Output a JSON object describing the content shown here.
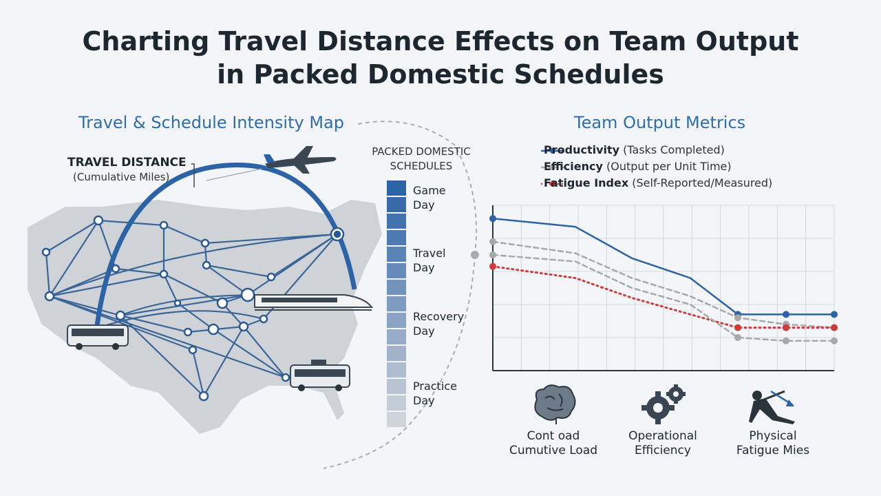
{
  "title": {
    "line1": "Charting Travel Distance Effects on Team Output",
    "line2": "in Packed Domestic Schedules"
  },
  "map": {
    "title": "Travel & Schedule Intensity Map",
    "travel_label": "TRAVEL DISTANCE",
    "travel_sub": "(Cumulative Miles)"
  },
  "schedule": {
    "title_line1": "PACKED DOMESTIC",
    "title_line2": "SCHEDULES",
    "items": [
      {
        "line1": "Game",
        "line2": "Day"
      },
      {
        "line1": "Travel",
        "line2": "Day"
      },
      {
        "line1": "Recovery",
        "line2": "Day"
      },
      {
        "line1": "Practice",
        "line2": "Day"
      }
    ]
  },
  "metrics": {
    "title": "Team Output Metrics",
    "legend": [
      {
        "name": "Productivity",
        "detail": "(Tasks Completed)",
        "color": "#2c62a6",
        "style": "solid"
      },
      {
        "name": "Efficiency",
        "detail": "(Output per Unit Time)",
        "color": "#a8a8a8",
        "style": "dashed"
      },
      {
        "name": "Fatigue Index",
        "detail": "(Self-Reported/Measured)",
        "color": "#d03a3a",
        "style": "dotted"
      }
    ],
    "icons": [
      {
        "name": "brain-icon",
        "line1": "Cont oad",
        "line2": "Cumutive Load"
      },
      {
        "name": "gears-icon",
        "line1": "Operational",
        "line2": "Efficiency"
      },
      {
        "name": "fallen-person-icon",
        "line1": "Physical",
        "line2": "Fatigue Mies"
      }
    ]
  },
  "chart_data": {
    "type": "line",
    "title": "",
    "xlabel": "",
    "ylabel": "",
    "x": [
      0,
      1,
      2,
      3,
      4,
      5,
      6
    ],
    "ylim": [
      0,
      100
    ],
    "grid": true,
    "series": [
      {
        "name": "Productivity",
        "values": [
          92,
          87,
          68,
          56,
          34,
          34,
          34
        ]
      },
      {
        "name": "Efficiency",
        "values": [
          78,
          71,
          56,
          45,
          32,
          28,
          26
        ]
      },
      {
        "name": "Fatigue Index",
        "values": [
          63,
          56,
          44,
          34,
          26,
          26,
          26
        ]
      },
      {
        "name": "",
        "values": [
          70,
          66,
          50,
          40,
          20,
          18,
          18
        ]
      }
    ]
  }
}
